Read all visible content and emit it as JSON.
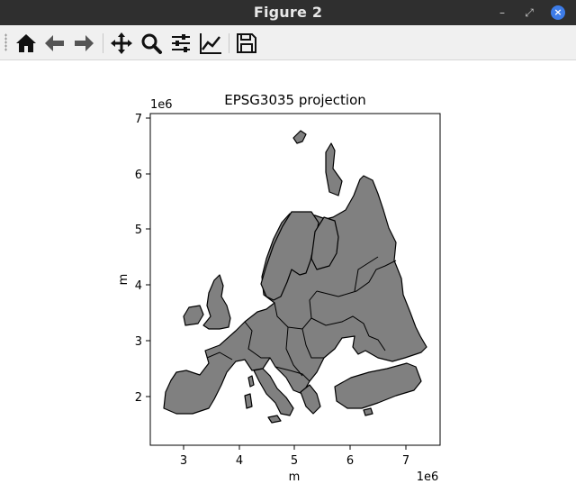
{
  "window": {
    "title": "Figure 2",
    "minimize_icon": "minimize-icon",
    "restore_icon": "restore-icon",
    "close_icon": "close-icon"
  },
  "toolbar": {
    "items": [
      {
        "name": "home",
        "icon": "home-icon"
      },
      {
        "name": "back",
        "icon": "arrow-left-icon"
      },
      {
        "name": "forward",
        "icon": "arrow-right-icon"
      },
      {
        "name": "pan",
        "icon": "move-icon"
      },
      {
        "name": "zoom",
        "icon": "magnifier-icon"
      },
      {
        "name": "configure-subplots",
        "icon": "sliders-icon"
      },
      {
        "name": "edit-axis",
        "icon": "line-chart-icon"
      },
      {
        "name": "save",
        "icon": "floppy-disk-icon"
      }
    ]
  },
  "figure": {
    "title": "EPSG3035 projection",
    "xlabel": "m",
    "ylabel": "m",
    "x_offset_text": "1e6",
    "y_offset_text": "1e6",
    "xticks": [
      "3",
      "4",
      "5",
      "6",
      "7"
    ],
    "yticks": [
      "2",
      "3",
      "4",
      "5",
      "6",
      "7"
    ],
    "map_fill": "#808080",
    "map_edge": "#000000"
  },
  "chart_data": {
    "type": "map",
    "title": "EPSG3035 projection",
    "xlabel": "m",
    "ylabel": "m",
    "x_scale": "1e6",
    "y_scale": "1e6",
    "xlim": [
      2.4,
      7.6
    ],
    "ylim": [
      1.1,
      7.1
    ],
    "xticks": [
      3,
      4,
      5,
      6,
      7
    ],
    "yticks": [
      2,
      3,
      4,
      5,
      6,
      7
    ],
    "grid": false,
    "fill_color": "#808080",
    "edge_color": "#000000"
  }
}
